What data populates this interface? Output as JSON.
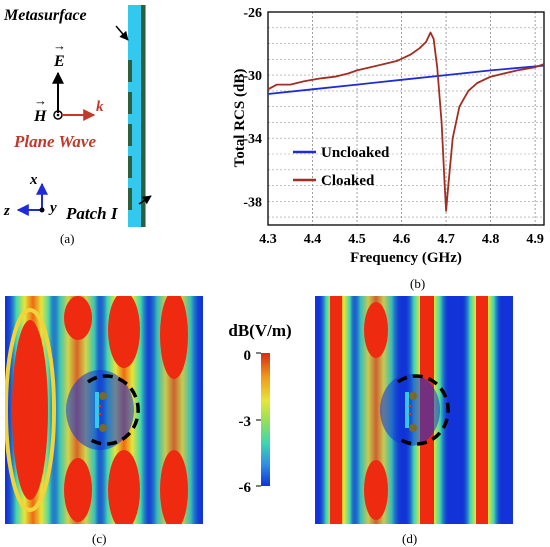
{
  "colors": {
    "uncloaked": "#1f2bd6",
    "cloaked": "#a02e22",
    "field_bg": "#1133d8",
    "field_hot": "#ee2a10",
    "metasurface_fill": "#33c8ee",
    "metasurface_strip": "#2d5f3f",
    "annotation_red": "#c0392b"
  },
  "panel_a": {
    "caption": "(a)",
    "metasurface_label": "Metasurface",
    "e_label": "E",
    "h_label": "H",
    "k_label": "k",
    "plane_wave_label": "Plane Wave",
    "x_label": "x",
    "y_label": "y",
    "z_label": "z",
    "patch_label": "Patch I"
  },
  "panel_c": {
    "caption": "(c)"
  },
  "panel_d": {
    "caption": "(d)"
  },
  "colorbar": {
    "title": "dB(V/m)",
    "ticks": [
      "0",
      "-3",
      "-6"
    ]
  },
  "chart_data": {
    "type": "line",
    "caption": "(b)",
    "xlabel": "Frequency (GHz)",
    "ylabel": "Total RCS (dB)",
    "xlim": [
      4.3,
      4.92
    ],
    "ylim": [
      -39.5,
      -26
    ],
    "xticks": [
      "4.3",
      "4.4",
      "4.5",
      "4.6",
      "4.7",
      "4.8",
      "4.9"
    ],
    "yticks": [
      "-26",
      "-30",
      "-34",
      "-38"
    ],
    "grid": true,
    "legend_position": "bottom-left",
    "series": [
      {
        "name": "Uncloaked",
        "x": [
          4.3,
          4.4,
          4.5,
          4.6,
          4.7,
          4.8,
          4.92
        ],
        "y": [
          -31.2,
          -30.9,
          -30.6,
          -30.3,
          -30.0,
          -29.7,
          -29.4
        ]
      },
      {
        "name": "Cloaked",
        "x": [
          4.3,
          4.32,
          4.35,
          4.38,
          4.4,
          4.42,
          4.45,
          4.48,
          4.5,
          4.53,
          4.56,
          4.59,
          4.62,
          4.64,
          4.655,
          4.665,
          4.672,
          4.68,
          4.69,
          4.697,
          4.7,
          4.705,
          4.715,
          4.73,
          4.75,
          4.77,
          4.8,
          4.83,
          4.86,
          4.9,
          4.92
        ],
        "y": [
          -30.9,
          -30.6,
          -30.6,
          -30.4,
          -30.3,
          -30.2,
          -30.1,
          -29.9,
          -29.7,
          -29.5,
          -29.3,
          -29.1,
          -28.7,
          -28.3,
          -27.9,
          -27.3,
          -27.7,
          -29.5,
          -33.0,
          -37.0,
          -38.6,
          -37.0,
          -34.0,
          -32.0,
          -31.0,
          -30.5,
          -30.1,
          -29.9,
          -29.7,
          -29.5,
          -29.3
        ]
      }
    ]
  }
}
